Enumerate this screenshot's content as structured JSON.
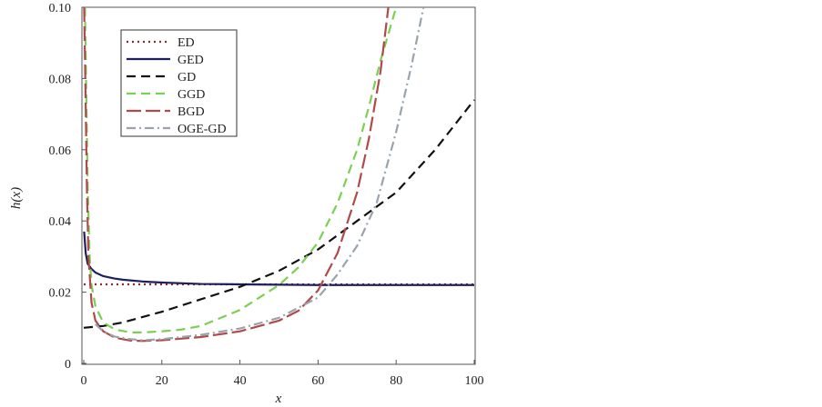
{
  "chart_data": {
    "type": "line",
    "title": "",
    "xlabel": "x",
    "ylabel": "h(x)",
    "xlim": [
      0,
      100
    ],
    "ylim": [
      0,
      0.1
    ],
    "x_ticks": [
      0,
      20,
      40,
      60,
      80,
      100
    ],
    "y_ticks": [
      0,
      0.02,
      0.04,
      0.06,
      0.08,
      0.1
    ],
    "x_tick_labels": [
      "0",
      "20",
      "40",
      "60",
      "80",
      "100"
    ],
    "y_tick_labels": [
      "0",
      "0.02",
      "0.04",
      "0.06",
      "0.08",
      "0.10"
    ],
    "grid": false,
    "legend_position": "top-left",
    "series": [
      {
        "name": "ED",
        "color": "#8b2a2a",
        "style": "dotted",
        "x": [
          0,
          100
        ],
        "y": [
          0.0222,
          0.0222
        ]
      },
      {
        "name": "GED",
        "color": "#1f1f5e",
        "style": "solid",
        "x": [
          0.1,
          0.5,
          1,
          2,
          3,
          5,
          8,
          10,
          15,
          20,
          30,
          40,
          50,
          60,
          70,
          80,
          90,
          100
        ],
        "y": [
          0.037,
          0.031,
          0.028,
          0.0265,
          0.0255,
          0.0245,
          0.0238,
          0.0235,
          0.023,
          0.0227,
          0.0223,
          0.0222,
          0.0221,
          0.022,
          0.022,
          0.022,
          0.022,
          0.022
        ]
      },
      {
        "name": "GD",
        "color": "#111111",
        "style": "dashed",
        "x": [
          0,
          5,
          10,
          20,
          30,
          40,
          50,
          60,
          70,
          80,
          90,
          100
        ],
        "y": [
          0.01,
          0.0105,
          0.0115,
          0.0145,
          0.018,
          0.0215,
          0.026,
          0.032,
          0.04,
          0.048,
          0.06,
          0.074
        ]
      },
      {
        "name": "GGD",
        "color": "#7ccf55",
        "style": "dashed",
        "x": [
          0.3,
          1,
          1.5,
          2,
          3,
          5,
          8,
          12,
          15,
          20,
          25,
          30,
          40,
          50,
          55,
          60,
          65,
          70,
          73,
          76,
          80
        ],
        "y": [
          0.1,
          0.05,
          0.03,
          0.022,
          0.016,
          0.0115,
          0.0095,
          0.0087,
          0.0087,
          0.009,
          0.0095,
          0.0105,
          0.015,
          0.022,
          0.027,
          0.034,
          0.045,
          0.06,
          0.072,
          0.085,
          0.1
        ]
      },
      {
        "name": "BGD",
        "color": "#b04a4a",
        "style": "long-dash",
        "x": [
          0.1,
          0.4,
          0.8,
          1.2,
          2,
          3,
          5,
          8,
          12,
          15,
          20,
          30,
          40,
          50,
          55,
          60,
          65,
          70,
          73,
          76,
          78
        ],
        "y": [
          0.1,
          0.08,
          0.05,
          0.03,
          0.017,
          0.012,
          0.009,
          0.0072,
          0.0064,
          0.0063,
          0.0065,
          0.0074,
          0.009,
          0.012,
          0.0148,
          0.0205,
          0.031,
          0.048,
          0.063,
          0.082,
          0.1
        ]
      },
      {
        "name": "OGE-GD",
        "color": "#9aa3ad",
        "style": "dash-dot",
        "x": [
          3,
          5,
          8,
          12,
          15,
          20,
          30,
          40,
          50,
          60,
          65,
          70,
          75,
          80,
          84,
          87
        ],
        "y": [
          0.011,
          0.009,
          0.0075,
          0.0068,
          0.0065,
          0.0068,
          0.008,
          0.0098,
          0.0128,
          0.0185,
          0.025,
          0.033,
          0.045,
          0.065,
          0.084,
          0.1
        ]
      }
    ]
  }
}
